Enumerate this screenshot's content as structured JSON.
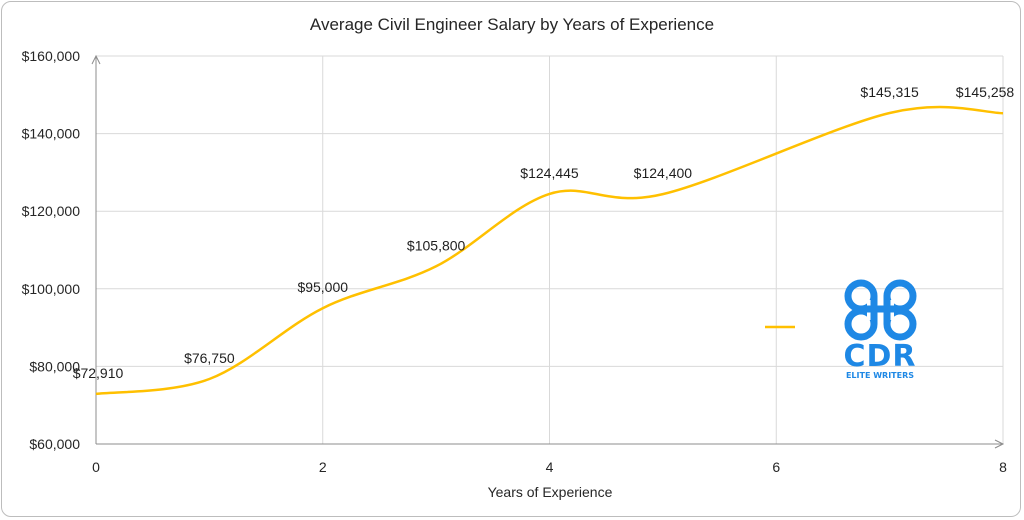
{
  "chart_data": {
    "type": "line",
    "title": "Average Civil Engineer Salary by Years of Experience",
    "xlabel": "Years of Experience",
    "ylabel": "",
    "xlim": [
      0,
      8
    ],
    "ylim": [
      60000,
      160000
    ],
    "x_ticks": [
      0,
      2,
      4,
      6,
      8
    ],
    "x_tick_labels": [
      "0",
      "2",
      "4",
      "6",
      "8"
    ],
    "y_ticks": [
      60000,
      80000,
      100000,
      120000,
      140000,
      160000
    ],
    "y_tick_labels": [
      "$60,000",
      "$80,000",
      "$100,000",
      "$120,000",
      "$140,000",
      "$160,000"
    ],
    "grid": true,
    "smooth": true,
    "legend_position": "right",
    "series": [
      {
        "color": "#FFC000",
        "x": [
          0,
          1,
          2,
          3,
          4,
          5,
          7,
          8
        ],
        "values": [
          72910,
          76750,
          95000,
          105800,
          124445,
          124400,
          145315,
          145258
        ],
        "labels": [
          "$72,910",
          "$76,750",
          "$95,000",
          "$105,800",
          "$124,445",
          "$124,400",
          "$145,315",
          "$145,258"
        ]
      }
    ]
  },
  "logo": {
    "text": "CDR",
    "subtext": "ELITE WRITERS",
    "color": "#1E88E5"
  }
}
